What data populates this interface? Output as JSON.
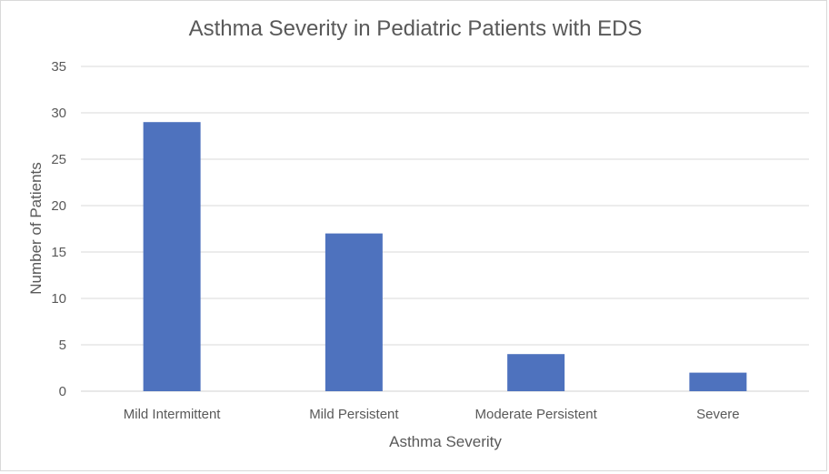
{
  "chart_data": {
    "type": "bar",
    "title": "Asthma Severity in Pediatric Patients with EDS",
    "xlabel": "Asthma Severity",
    "ylabel": "Number of Patients",
    "categories": [
      "Mild Intermittent",
      "Mild Persistent",
      "Moderate Persistent",
      "Severe"
    ],
    "values": [
      29,
      17,
      4,
      2
    ],
    "ylim": [
      0,
      35
    ],
    "yticks": [
      "0",
      "5",
      "10",
      "15",
      "20",
      "25",
      "30",
      "35"
    ],
    "grid": true,
    "legend": "none",
    "bar_color": "#4e72be"
  }
}
